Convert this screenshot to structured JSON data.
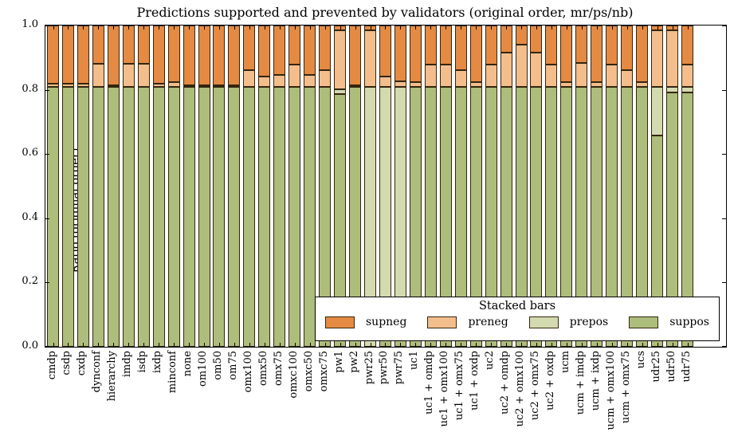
{
  "title": "Predictions supported and prevented by validators (original order, mr/ps/nb)",
  "y_axis": {
    "label": "Ratio (original order)",
    "ticks": [
      "0.0",
      "0.2",
      "0.4",
      "0.6",
      "0.8",
      "1.0"
    ],
    "range": [
      0.0,
      1.0
    ]
  },
  "legend": {
    "title": "Stacked bars",
    "entries": [
      {
        "label": "supneg",
        "color": "#E58A43"
      },
      {
        "label": "preneg",
        "color": "#F3BE8C"
      },
      {
        "label": "prepos",
        "color": "#D3DAAF"
      },
      {
        "label": "suppos",
        "color": "#ADBD7B"
      }
    ]
  },
  "chart_data": {
    "type": "bar",
    "stacked": true,
    "title": "Predictions supported and prevented by validators (original order, mr/ps/nb)",
    "xlabel": "",
    "ylabel": "Ratio (original order)",
    "ylim": [
      0.0,
      1.0
    ],
    "grid": false,
    "legend_position": "lower right inside plot",
    "categories": [
      "cmdp",
      "csdp",
      "cxdp",
      "dynconf",
      "hierarchy",
      "imdp",
      "isdp",
      "ixdp",
      "minconf",
      "none",
      "om100",
      "om50",
      "om75",
      "omx100",
      "omx50",
      "omx75",
      "omxc100",
      "omxc50",
      "omxc75",
      "pw1",
      "pw2",
      "pwr25",
      "pwr50",
      "pwr75",
      "uc1",
      "uc1 + omdp",
      "uc1 + omx100",
      "uc1 + omx75",
      "uc1 + oxdp",
      "uc2",
      "uc2 + omdp",
      "uc2 + omx100",
      "uc2 + omx75",
      "uc2 + oxdp",
      "ucm",
      "ucm + imdp",
      "ucm + ixdp",
      "ucm + omx100",
      "ucm + omx75",
      "ucs",
      "udr25",
      "udr50",
      "udr75"
    ],
    "series": [
      {
        "name": "suppos",
        "color": "#ADBD7B",
        "values": [
          0.81,
          0.81,
          0.81,
          0.81,
          0.81,
          0.81,
          0.81,
          0.81,
          0.81,
          0.81,
          0.81,
          0.81,
          0.81,
          0.81,
          0.81,
          0.81,
          0.81,
          0.81,
          0.81,
          0.787,
          0.81,
          0.0,
          0.08,
          0.08,
          0.81,
          0.81,
          0.81,
          0.81,
          0.81,
          0.81,
          0.81,
          0.81,
          0.81,
          0.81,
          0.81,
          0.81,
          0.81,
          0.81,
          0.81,
          0.81,
          0.657,
          0.792,
          0.792
        ]
      },
      {
        "name": "prepos",
        "color": "#D3DAAF",
        "values": [
          0,
          0,
          0,
          0,
          0,
          0,
          0,
          0,
          0,
          0,
          0,
          0,
          0,
          0,
          0,
          0,
          0,
          0,
          0,
          0.015,
          0,
          0.81,
          0.73,
          0.73,
          0,
          0,
          0,
          0,
          0,
          0,
          0,
          0,
          0,
          0,
          0,
          0,
          0,
          0,
          0,
          0,
          0.151,
          0.016,
          0.016
        ]
      },
      {
        "name": "preneg",
        "color": "#F3BE8C",
        "values": [
          0.01,
          0.01,
          0.01,
          0.07,
          0.004,
          0.07,
          0.07,
          0.01,
          0.015,
          0.004,
          0.004,
          0.004,
          0.004,
          0.052,
          0.031,
          0.035,
          0.068,
          0.035,
          0.052,
          0.183,
          0.004,
          0.175,
          0.031,
          0.017,
          0.014,
          0.068,
          0.068,
          0.05,
          0.014,
          0.068,
          0.106,
          0.131,
          0.106,
          0.068,
          0.014,
          0.073,
          0.014,
          0.068,
          0.052,
          0.014,
          0.177,
          0.177,
          0.07
        ]
      },
      {
        "name": "supneg",
        "color": "#E58A43",
        "values": [
          0.18,
          0.18,
          0.18,
          0.12,
          0.186,
          0.12,
          0.12,
          0.18,
          0.175,
          0.186,
          0.186,
          0.186,
          0.186,
          0.138,
          0.159,
          0.155,
          0.122,
          0.155,
          0.138,
          0.015,
          0.186,
          0.015,
          0.159,
          0.173,
          0.176,
          0.122,
          0.122,
          0.14,
          0.176,
          0.122,
          0.084,
          0.059,
          0.084,
          0.122,
          0.176,
          0.117,
          0.176,
          0.122,
          0.138,
          0.176,
          0.015,
          0.015,
          0.122
        ]
      }
    ]
  }
}
